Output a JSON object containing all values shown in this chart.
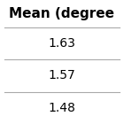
{
  "title": "Mean (degree",
  "rows": [
    "1.63",
    "1.57",
    "1.48"
  ],
  "title_fontsize": 11,
  "cell_fontsize": 10,
  "background_color": "#ffffff",
  "text_color": "#000000",
  "line_color": "#aaaaaa",
  "title_font_weight": "bold"
}
